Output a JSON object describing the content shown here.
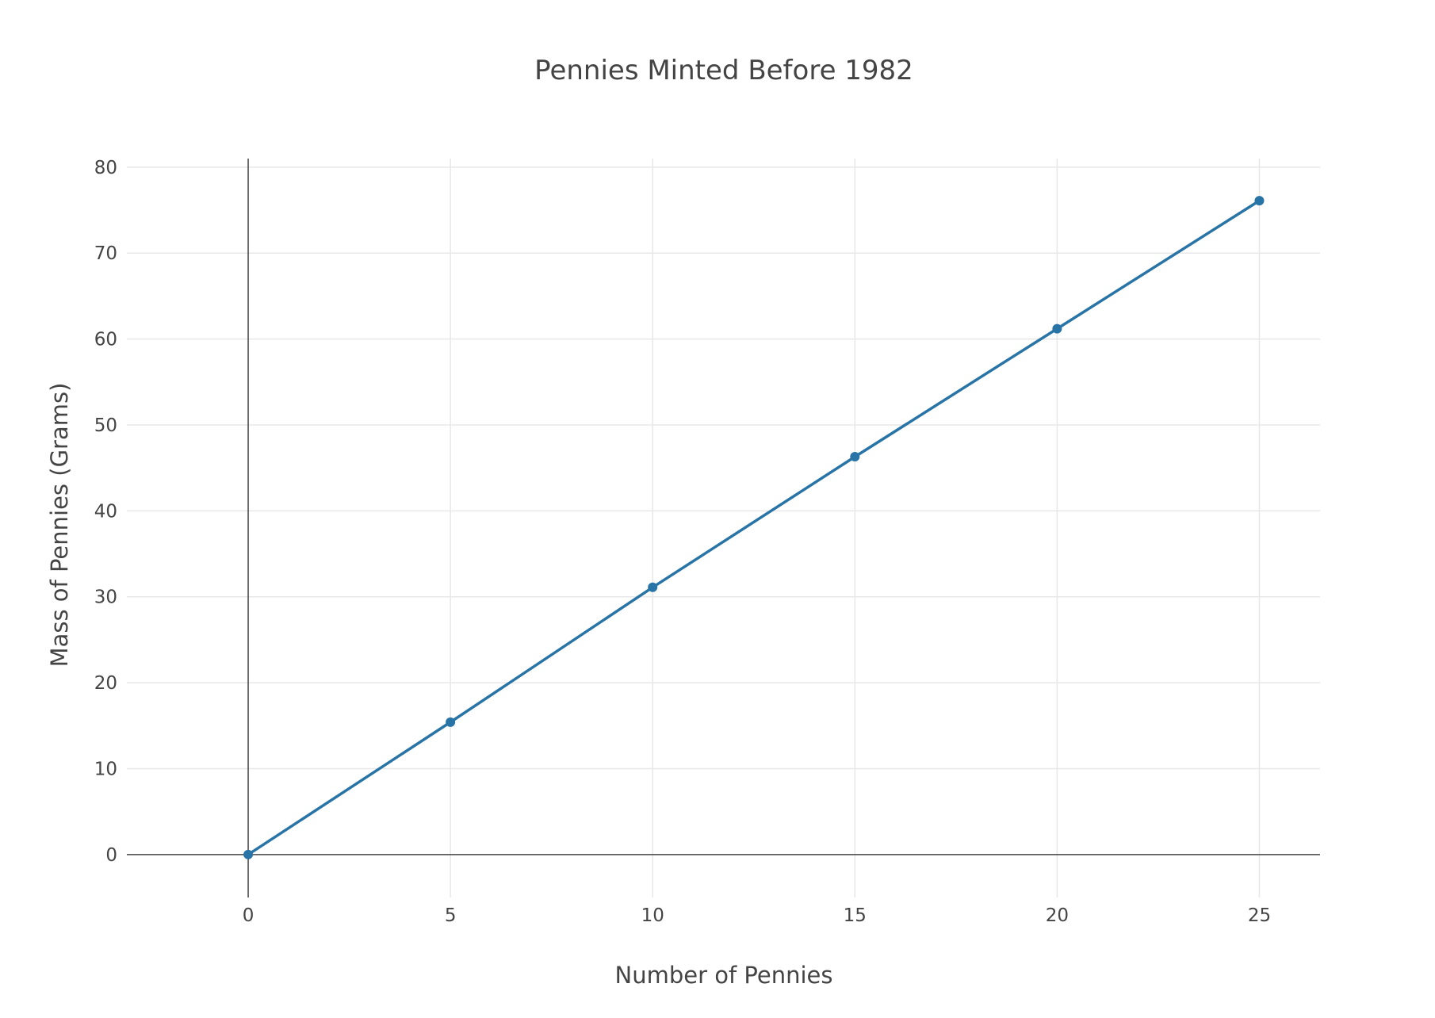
{
  "chart_data": {
    "type": "line",
    "title": "Pennies Minted Before 1982",
    "xlabel": "Number of Pennies",
    "ylabel": "Mass of Pennies (Grams)",
    "xlim": [
      -3,
      26.5
    ],
    "ylim": [
      -5,
      81
    ],
    "xticks": [
      0,
      5,
      10,
      15,
      20,
      25
    ],
    "yticks": [
      0,
      10,
      20,
      30,
      40,
      50,
      60,
      70,
      80
    ],
    "grid": true,
    "legend": "none",
    "series": [
      {
        "x": [
          0,
          5,
          10,
          15,
          20,
          25
        ],
        "values": [
          0,
          15.4,
          31.1,
          46.3,
          61.2,
          76.1
        ],
        "color": "#2874a6"
      }
    ],
    "colors": {
      "grid": "#e8e8e8",
      "zeroline": "#444444",
      "text": "#444444"
    }
  }
}
